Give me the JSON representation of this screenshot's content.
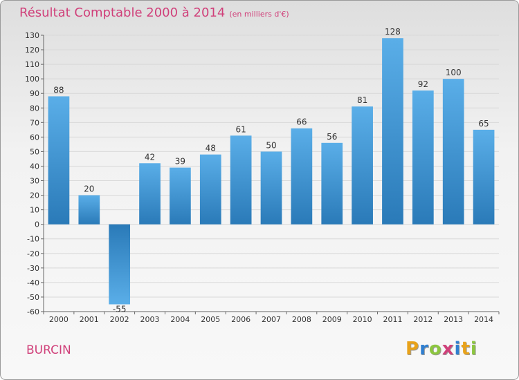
{
  "header": {
    "title": "Résultat Comptable 2000 à 2014",
    "subtitle": "(en milliers d'€)"
  },
  "footer": {
    "commune": "BURCIN",
    "logo_letters": [
      "P",
      "r",
      "o",
      "x",
      "i",
      "t",
      "i"
    ],
    "logo_colors": [
      "#e8a21a",
      "#2f7fd0",
      "#8cc63f",
      "#d0407a",
      "#2f7fd0",
      "#e8a21a",
      "#8cc63f"
    ]
  },
  "colors": {
    "bar_top": "#5aaee8",
    "bar_bottom": "#2a7ab8",
    "grid": "#d8d8d8",
    "axis": "#666666",
    "title": "#d0407a"
  },
  "chart_data": {
    "type": "bar",
    "title": "Résultat Comptable 2000 à 2014",
    "subtitle": "(en milliers d'€)",
    "xlabel": "",
    "ylabel": "",
    "categories": [
      "2000",
      "2001",
      "2002",
      "2003",
      "2004",
      "2005",
      "2006",
      "2007",
      "2008",
      "2009",
      "2010",
      "2011",
      "2012",
      "2013",
      "2014"
    ],
    "values": [
      88,
      20,
      -55,
      42,
      39,
      48,
      61,
      50,
      66,
      56,
      81,
      128,
      92,
      100,
      65
    ],
    "ylim": [
      -60,
      130
    ],
    "yticks": [
      -60,
      -50,
      -40,
      -30,
      -20,
      -10,
      0,
      10,
      20,
      30,
      40,
      50,
      60,
      70,
      80,
      90,
      100,
      110,
      120,
      130
    ],
    "grid": true,
    "legend": "none"
  }
}
